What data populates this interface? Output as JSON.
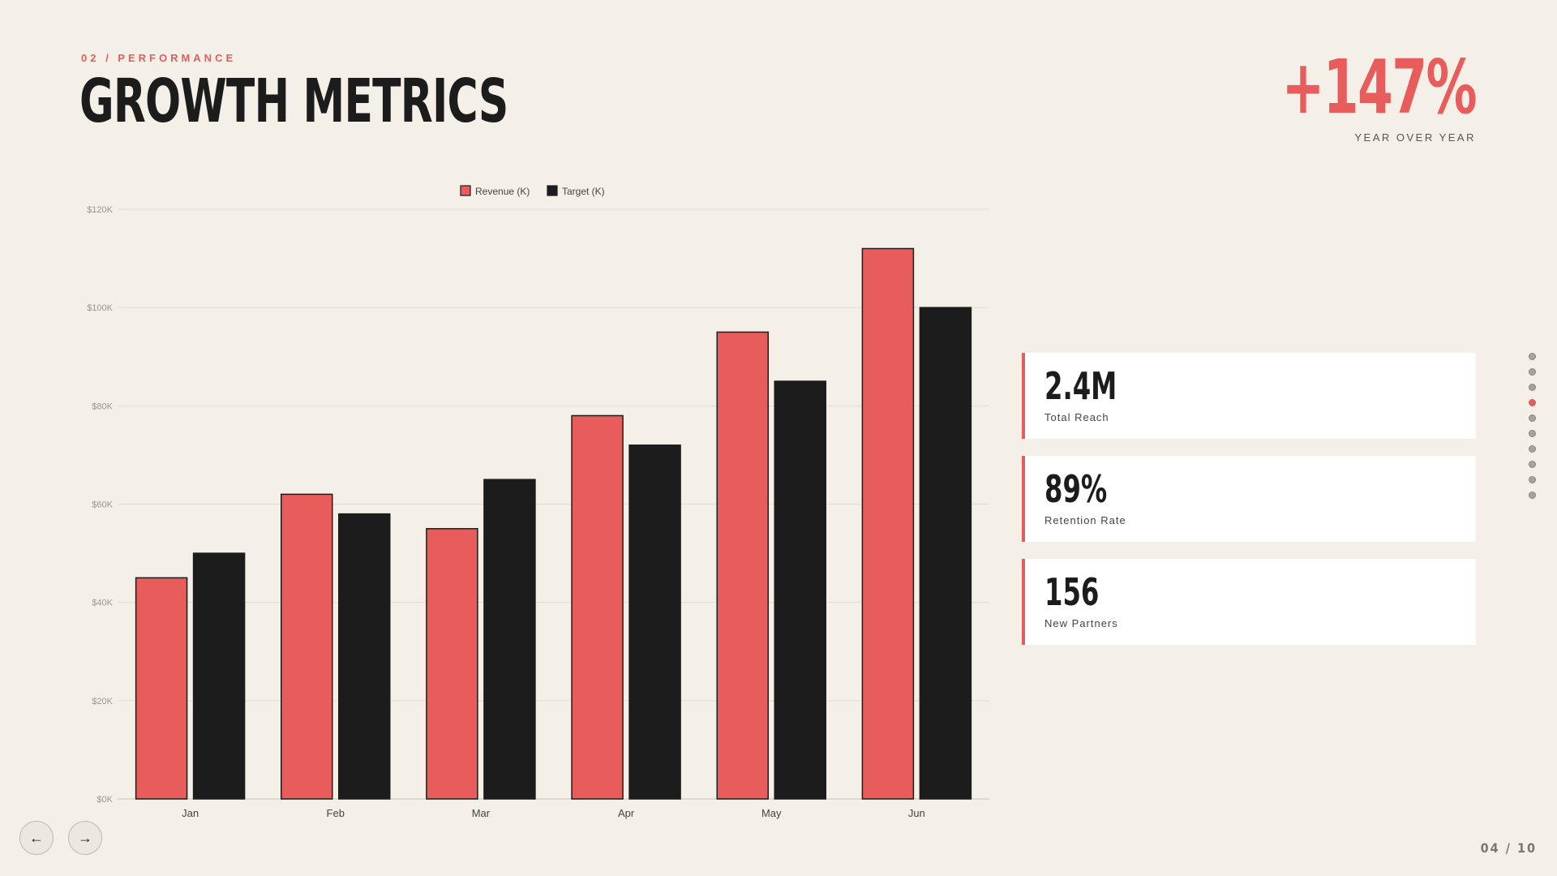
{
  "header": {
    "eyebrow": "02 / PERFORMANCE",
    "title": "GROWTH METRICS"
  },
  "headline_kpi": {
    "value": "+147%",
    "caption": "YEAR OVER YEAR"
  },
  "stats": [
    {
      "value": "2.4M",
      "label": "Total Reach"
    },
    {
      "value": "89%",
      "label": "Retention Rate"
    },
    {
      "value": "156",
      "label": "New Partners"
    }
  ],
  "colors": {
    "accent": "#E85C5C",
    "dark": "#1C1C1C",
    "background": "#F4F0E8"
  },
  "navigation": {
    "prev_icon": "←",
    "next_icon": "→",
    "page_indicator": "04 / 10",
    "slide_count": 10,
    "current_slide": 4
  },
  "chart_data": {
    "type": "bar",
    "categories": [
      "Jan",
      "Feb",
      "Mar",
      "Apr",
      "May",
      "Jun"
    ],
    "series": [
      {
        "name": "Revenue (K)",
        "values": [
          45,
          62,
          55,
          78,
          95,
          112
        ],
        "color": "#E85C5C"
      },
      {
        "name": "Target (K)",
        "values": [
          50,
          58,
          65,
          72,
          85,
          100
        ],
        "color": "#1C1C1C"
      }
    ],
    "ylim": [
      0,
      120
    ],
    "yticks": [
      0,
      20,
      40,
      60,
      80,
      100,
      120
    ],
    "ytick_labels": [
      "$0K",
      "$20K",
      "$40K",
      "$60K",
      "$80K",
      "$100K",
      "$120K"
    ],
    "legend_position": "top-center",
    "grid": true
  }
}
